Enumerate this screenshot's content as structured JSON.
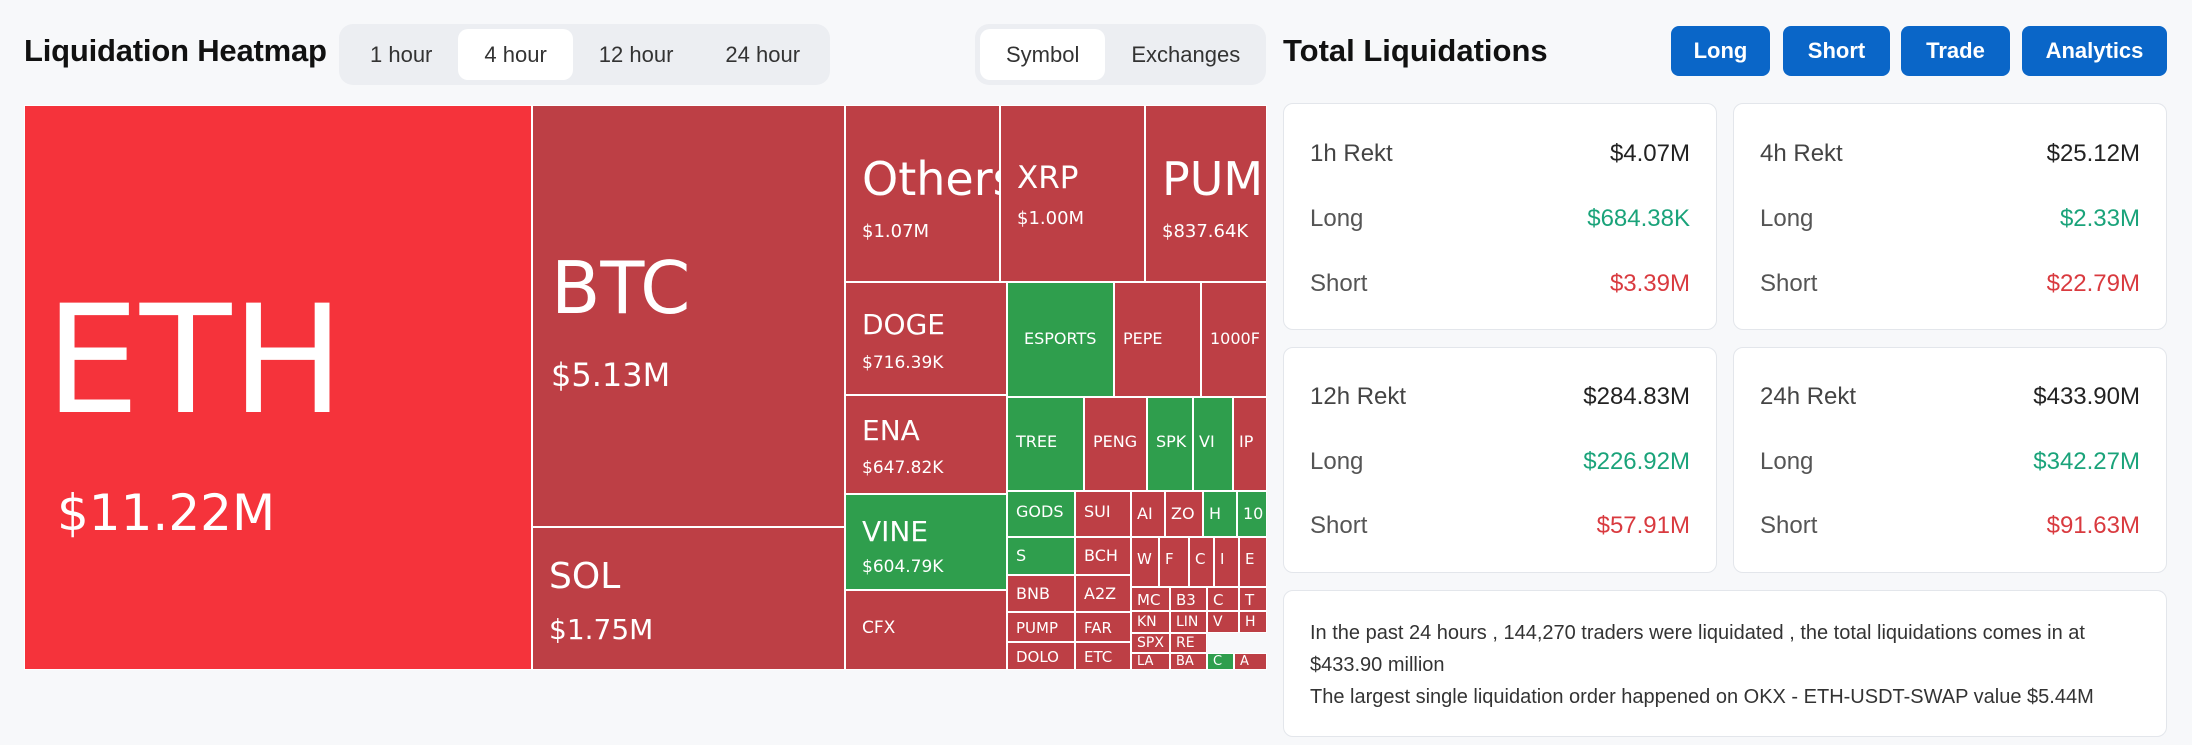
{
  "header": {
    "title": "Liquidation Heatmap",
    "time_options": [
      "1 hour",
      "4 hour",
      "12 hour",
      "24 hour"
    ],
    "view_options": [
      "Symbol",
      "Exchanges"
    ]
  },
  "right": {
    "title": "Total Liquidations",
    "buttons": [
      "Long",
      "Short",
      "Trade",
      "Analytics"
    ],
    "cards": [
      {
        "label": "1h Rekt",
        "total": "$4.07M",
        "long_label": "Long",
        "long": "$684.38K",
        "short_label": "Short",
        "short": "$3.39M"
      },
      {
        "label": "4h Rekt",
        "total": "$25.12M",
        "long_label": "Long",
        "long": "$2.33M",
        "short_label": "Short",
        "short": "$22.79M"
      },
      {
        "label": "12h Rekt",
        "total": "$284.83M",
        "long_label": "Long",
        "long": "$226.92M",
        "short_label": "Short",
        "short": "$57.91M"
      },
      {
        "label": "24h Rekt",
        "total": "$433.90M",
        "long_label": "Long",
        "long": "$342.27M",
        "short_label": "Short",
        "short": "$91.63M"
      }
    ],
    "summary_line1": "In the past 24 hours , 144,270 traders were liquidated , the total liquidations comes in at $433.90 million",
    "summary_line2": "The largest single liquidation order happened on OKX - ETH-USDT-SWAP value $5.44M"
  },
  "colors": {
    "red": "#bd3f45",
    "bright_red": "#f5333b",
    "green": "#2f9e4d",
    "accent": "#0a66c8"
  },
  "heatmap": {
    "cells": [
      {
        "sym": "ETH",
        "val": "$11.22M",
        "color": "bright"
      },
      {
        "sym": "BTC",
        "val": "$5.13M",
        "color": "red"
      },
      {
        "sym": "SOL",
        "val": "$1.75M",
        "color": "red"
      },
      {
        "sym": "Others",
        "val": "$1.07M",
        "color": "red"
      },
      {
        "sym": "XRP",
        "val": "$1.00M",
        "color": "red"
      },
      {
        "sym": "PUMP",
        "val": "$837.64K",
        "color": "red"
      },
      {
        "sym": "DOGE",
        "val": "$716.39K",
        "color": "red"
      },
      {
        "sym": "ENA",
        "val": "$647.82K",
        "color": "red"
      },
      {
        "sym": "VINE",
        "val": "$604.79K",
        "color": "green"
      },
      {
        "sym": "CFX",
        "val": "",
        "color": "red"
      },
      {
        "sym": "ESPORTS",
        "val": "",
        "color": "green"
      },
      {
        "sym": "PEPE",
        "val": "",
        "color": "red"
      },
      {
        "sym": "1000F",
        "val": "",
        "color": "red"
      },
      {
        "sym": "TREE",
        "val": "",
        "color": "green"
      },
      {
        "sym": "PENG",
        "val": "",
        "color": "red"
      },
      {
        "sym": "SPK",
        "val": "",
        "color": "green"
      },
      {
        "sym": "VI",
        "val": "",
        "color": "green"
      },
      {
        "sym": "IP",
        "val": "",
        "color": "red"
      },
      {
        "sym": "GODS",
        "val": "",
        "color": "green"
      },
      {
        "sym": "SUI",
        "val": "",
        "color": "red"
      },
      {
        "sym": "AI",
        "val": "",
        "color": "red"
      },
      {
        "sym": "ZO",
        "val": "",
        "color": "red"
      },
      {
        "sym": "H",
        "val": "",
        "color": "green"
      },
      {
        "sym": "10",
        "val": "",
        "color": "green"
      },
      {
        "sym": "S",
        "val": "",
        "color": "green"
      },
      {
        "sym": "BCH",
        "val": "",
        "color": "red"
      },
      {
        "sym": "W",
        "val": "",
        "color": "red"
      },
      {
        "sym": "F",
        "val": "",
        "color": "red"
      },
      {
        "sym": "C",
        "val": "",
        "color": "red"
      },
      {
        "sym": "I",
        "val": "",
        "color": "red"
      },
      {
        "sym": "E",
        "val": "",
        "color": "red"
      },
      {
        "sym": "BNB",
        "val": "",
        "color": "red"
      },
      {
        "sym": "A2Z",
        "val": "",
        "color": "red"
      },
      {
        "sym": "MC",
        "val": "",
        "color": "red"
      },
      {
        "sym": "B3",
        "val": "",
        "color": "red"
      },
      {
        "sym": "C",
        "val": "",
        "color": "red"
      },
      {
        "sym": "T",
        "val": "",
        "color": "red"
      },
      {
        "sym": "PUMP",
        "val": "",
        "color": "red"
      },
      {
        "sym": "FAR",
        "val": "",
        "color": "red"
      },
      {
        "sym": "KN",
        "val": "",
        "color": "red"
      },
      {
        "sym": "LIN",
        "val": "",
        "color": "red"
      },
      {
        "sym": "V",
        "val": "",
        "color": "red"
      },
      {
        "sym": "H",
        "val": "",
        "color": "red"
      },
      {
        "sym": "SPX",
        "val": "",
        "color": "red"
      },
      {
        "sym": "RE",
        "val": "",
        "color": "red"
      },
      {
        "sym": "DOLO",
        "val": "",
        "color": "red"
      },
      {
        "sym": "ETC",
        "val": "",
        "color": "red"
      },
      {
        "sym": "LA",
        "val": "",
        "color": "red"
      },
      {
        "sym": "BA",
        "val": "",
        "color": "red"
      },
      {
        "sym": "C",
        "val": "",
        "color": "green"
      },
      {
        "sym": "A",
        "val": "",
        "color": "red"
      }
    ]
  }
}
